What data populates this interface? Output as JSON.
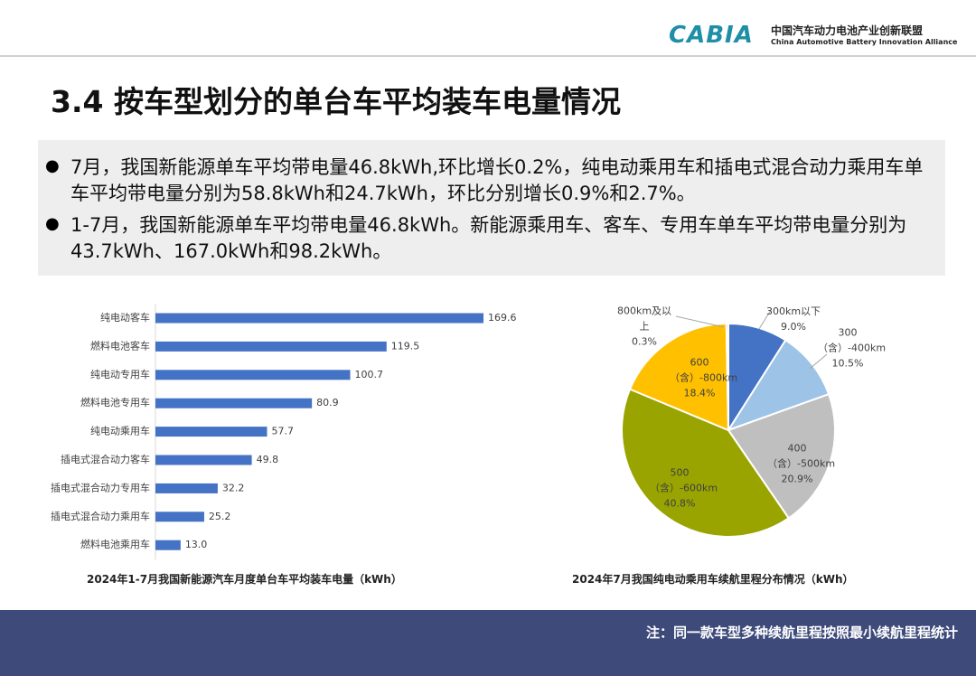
{
  "header": {
    "logo": "CABIA",
    "org_cn": "中国汽车动力电池产业创新联盟",
    "org_en": "China Automotive Battery Innovation Alliance"
  },
  "title": "3.4 按车型划分的单台车平均装车电量情况",
  "bullets": [
    "7月，我国新能源单车平均带电量46.8kWh,环比增长0.2%，纯电动乘用车和插电式混合动力乘用车单车平均带电量分别为58.8kWh和24.7kWh，环比分别增长0.9%和2.7%。",
    "1-7月，我国新能源单车平均带电量46.8kWh。新能源乘用车、客车、专用车单车平均带电量分别为43.7kWh、167.0kWh和98.2kWh。"
  ],
  "chart_data": [
    {
      "type": "bar",
      "orientation": "horizontal",
      "title": "2024年1-7月我国新能源汽车月度单台车平均装车电量（kWh）",
      "categories": [
        "纯电动客车",
        "燃料电池客车",
        "纯电动专用车",
        "燃料电池专用车",
        "纯电动乘用车",
        "插电式混合动力客车",
        "插电式混合动力专用车",
        "插电式混合动力乘用车",
        "燃料电池乘用车"
      ],
      "values": [
        169.6,
        119.5,
        100.7,
        80.9,
        57.7,
        49.8,
        32.2,
        25.2,
        13.0
      ],
      "value_labels": [
        "169.6",
        "119.5",
        "100.7",
        "80.9",
        "57.7",
        "49.8",
        "32.2",
        "25.2",
        "13.0"
      ],
      "color": "#4472c4"
    },
    {
      "type": "pie",
      "title": "2024年7月我国纯电动乘用车续航里程分布情况（kWh）",
      "categories": [
        "300km以下",
        "300（含）-400km",
        "400（含）-500km",
        "500（含）-600km",
        "600（含）-800km",
        "800km及以上"
      ],
      "values": [
        9.0,
        10.5,
        20.9,
        40.8,
        18.4,
        0.3
      ],
      "value_labels": [
        "9.0%",
        "10.5%",
        "20.9%",
        "40.8%",
        "18.4%",
        "0.3%"
      ],
      "colors": [
        "#4472c4",
        "#9dc3e6",
        "#bfbfbf",
        "#9aa400",
        "#ffc000",
        "#7f7f7f"
      ]
    }
  ],
  "footer": {
    "note": "注：同一款车型多种续航里程按照最小续航里程统计"
  }
}
